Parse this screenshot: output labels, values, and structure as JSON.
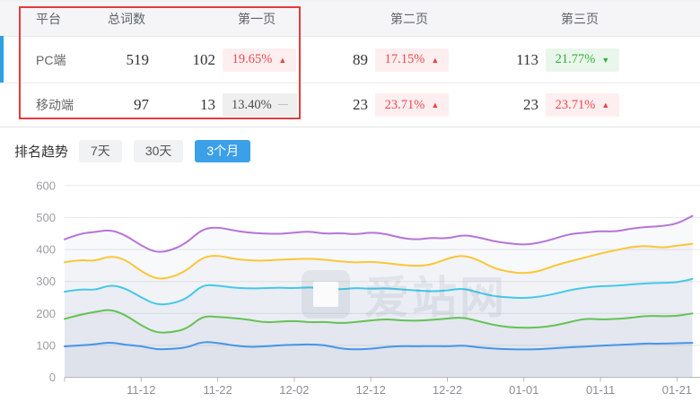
{
  "table": {
    "columns": [
      "平台",
      "总词数",
      "第一页",
      "第二页",
      "第三页"
    ],
    "rows": [
      {
        "platform": "PC端",
        "total": "519",
        "page1": {
          "count": "102",
          "pct": "19.65%",
          "dir": "up"
        },
        "page2": {
          "count": "89",
          "pct": "17.15%",
          "dir": "up"
        },
        "page3": {
          "count": "113",
          "pct": "21.77%",
          "dir": "down"
        }
      },
      {
        "platform": "移动端",
        "total": "97",
        "page1": {
          "count": "13",
          "pct": "13.40%",
          "dir": "flat"
        },
        "page2": {
          "count": "23",
          "pct": "23.71%",
          "dir": "up"
        },
        "page3": {
          "count": "23",
          "pct": "23.71%",
          "dir": "up"
        }
      }
    ]
  },
  "trend": {
    "label": "排名趋势",
    "tabs": [
      {
        "label": "7天",
        "active": false
      },
      {
        "label": "30天",
        "active": false
      },
      {
        "label": "3个月",
        "active": true
      }
    ]
  },
  "watermark": {
    "text": "爱站网"
  },
  "colors": {
    "active_tab": "#3ba0e8",
    "up_red": "#f04a4d",
    "down_green": "#32b23b",
    "highlight_border": "#e23c3c",
    "row_indicator": "#2aa2e4"
  },
  "chart_data": {
    "type": "line",
    "title": "",
    "xlabel": "",
    "ylabel": "",
    "ylim": [
      0,
      600
    ],
    "y_ticks": [
      0,
      100,
      200,
      300,
      400,
      500,
      600
    ],
    "x_tick_labels": [
      "11-12",
      "11-22",
      "12-02",
      "12-12",
      "12-22",
      "01-01",
      "01-11",
      "01-21"
    ],
    "x_tick_days": [
      10,
      20,
      30,
      40,
      50,
      60,
      70,
      80
    ],
    "day_span": 83,
    "sample_step_days": 2,
    "grid": true,
    "legend": "none",
    "series": [
      {
        "color": "#4596e8",
        "values": [
          97,
          100,
          103,
          110,
          101,
          98,
          87,
          89,
          93,
          112,
          108,
          100,
          95,
          97,
          100,
          102,
          103,
          101,
          90,
          87,
          89,
          95,
          98,
          97,
          98,
          97,
          100,
          94,
          90,
          88,
          87,
          88,
          91,
          94,
          96,
          99,
          101,
          103,
          106,
          105,
          107,
          108
        ]
      },
      {
        "color": "#64c254",
        "values": [
          183,
          196,
          205,
          213,
          195,
          162,
          139,
          141,
          152,
          192,
          189,
          186,
          181,
          172,
          174,
          177,
          172,
          174,
          169,
          173,
          178,
          182,
          178,
          177,
          180,
          184,
          188,
          176,
          164,
          157,
          155,
          156,
          162,
          173,
          184,
          181,
          183,
          186,
          193,
          191,
          192,
          200
        ]
      },
      {
        "color": "#45c8ea",
        "values": [
          268,
          276,
          273,
          290,
          278,
          250,
          227,
          230,
          247,
          290,
          287,
          281,
          278,
          279,
          281,
          279,
          282,
          278,
          275,
          280,
          277,
          279,
          275,
          272,
          269,
          272,
          279,
          266,
          254,
          250,
          248,
          252,
          261,
          273,
          281,
          286,
          286,
          291,
          294,
          296,
          297,
          308
        ]
      },
      {
        "color": "#fbc637",
        "values": [
          360,
          368,
          364,
          381,
          368,
          332,
          307,
          313,
          335,
          376,
          382,
          371,
          366,
          365,
          368,
          370,
          372,
          368,
          363,
          359,
          362,
          358,
          352,
          348,
          353,
          372,
          383,
          368,
          342,
          330,
          325,
          332,
          350,
          363,
          375,
          388,
          398,
          408,
          412,
          405,
          412,
          418
        ]
      },
      {
        "color": "#b674d8",
        "values": [
          432,
          450,
          455,
          462,
          444,
          412,
          390,
          398,
          422,
          465,
          470,
          460,
          453,
          450,
          449,
          453,
          457,
          449,
          452,
          447,
          454,
          449,
          436,
          431,
          437,
          434,
          446,
          439,
          426,
          419,
          415,
          421,
          434,
          449,
          453,
          458,
          456,
          466,
          471,
          473,
          481,
          505
        ]
      }
    ]
  }
}
